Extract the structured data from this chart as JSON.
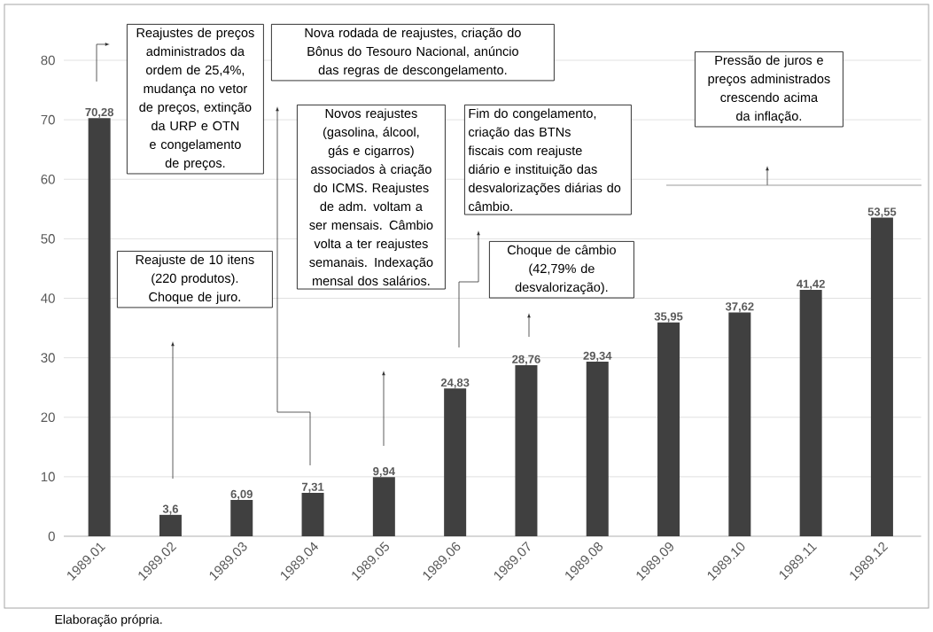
{
  "chart_data": {
    "type": "bar",
    "categories": [
      "1989.01",
      "1989.02",
      "1989.03",
      "1989.04",
      "1989.05",
      "1989.06",
      "1989.07",
      "1989.08",
      "1989.09",
      "1989.10",
      "1989.11",
      "1989.12"
    ],
    "values": [
      70.28,
      3.6,
      6.09,
      7.31,
      9.94,
      24.83,
      28.76,
      29.34,
      35.95,
      37.62,
      41.42,
      53.55
    ],
    "value_labels": [
      "70,28",
      "3,6",
      "6,09",
      "7,31",
      "9,94",
      "24,83",
      "28,76",
      "29,34",
      "35,95",
      "37,62",
      "41,42",
      "53,55"
    ],
    "color": "#404040",
    "ylim": [
      0,
      80
    ],
    "yticks": [
      0,
      10,
      20,
      30,
      40,
      50,
      60,
      70,
      80
    ],
    "grid": "y",
    "annotations": [
      "Reajustes de preços administrados da ordem de 25,4%, mudança no vetor de preços, extinção da URP e OTN e congelamento de preços.",
      "Reajuste de 10 itens (220 produtos). Choque de juro.",
      "Nova rodada de reajustes, criação do Bônus do Tesouro Nacional, anúncio das regras de descongelamento.",
      "Novos reajustes (gasolina, álcool, gás e cigarros) associados à criação do ICMS. Reajustes de adm. voltam a ser mensais. Câmbio volta a ter reajustes semanais. Indexação mensal dos salários.",
      "Fim do congelamento, criação das BTNs fiscais com reajuste diário e instituição das desvalorizações diárias do câmbio.",
      "Choque de câmbio (42,79% de desvalorização).",
      "Pressão de juros e preços administrados crescendo acima da inflação.",
      "Elaboração própria."
    ]
  }
}
